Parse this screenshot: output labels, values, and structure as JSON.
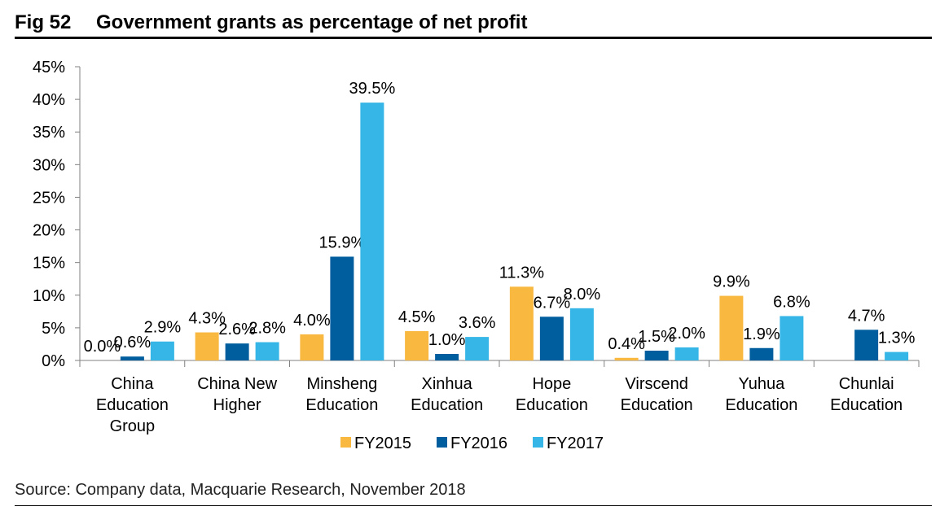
{
  "figure": {
    "number": "Fig 52",
    "title": "Government grants as percentage of net profit",
    "source": "Source: Company data, Macquarie Research, November 2018"
  },
  "chart_data": {
    "type": "bar",
    "title": "Government grants as percentage of net profit",
    "xlabel": "",
    "ylabel": "",
    "ylim": [
      0,
      45
    ],
    "yticks": [
      "0%",
      "5%",
      "10%",
      "15%",
      "20%",
      "25%",
      "30%",
      "35%",
      "40%",
      "45%"
    ],
    "categories": [
      [
        "China",
        "Education",
        "Group"
      ],
      [
        "China New",
        "Higher"
      ],
      [
        "Minsheng",
        "Education"
      ],
      [
        "Xinhua",
        "Education"
      ],
      [
        "Hope",
        "Education"
      ],
      [
        "Virscend",
        "Education"
      ],
      [
        "Yuhua",
        "Education"
      ],
      [
        "Chunlai",
        "Education"
      ]
    ],
    "series": [
      {
        "name": "FY2015",
        "color": "#F9B840",
        "values": [
          0.0,
          4.3,
          4.0,
          4.5,
          11.3,
          0.4,
          9.9,
          null
        ],
        "labels": [
          "0.0%",
          "4.3%",
          "4.0%",
          "4.5%",
          "11.3%",
          "0.4%",
          "9.9%",
          ""
        ]
      },
      {
        "name": "FY2016",
        "color": "#005D9E",
        "values": [
          0.6,
          2.6,
          15.9,
          1.0,
          6.7,
          1.5,
          1.9,
          4.7
        ],
        "labels": [
          "0.6%",
          "2.6%",
          "15.9%",
          "1.0%",
          "6.7%",
          "1.5%",
          "1.9%",
          "4.7%"
        ]
      },
      {
        "name": "FY2017",
        "color": "#35B6E6",
        "values": [
          2.9,
          2.8,
          39.5,
          3.6,
          8.0,
          2.0,
          6.8,
          1.3
        ],
        "labels": [
          "2.9%",
          "2.8%",
          "39.5%",
          "3.6%",
          "8.0%",
          "2.0%",
          "6.8%",
          "1.3%"
        ]
      }
    ],
    "legend": {
      "position": "bottom"
    },
    "grid": false
  }
}
